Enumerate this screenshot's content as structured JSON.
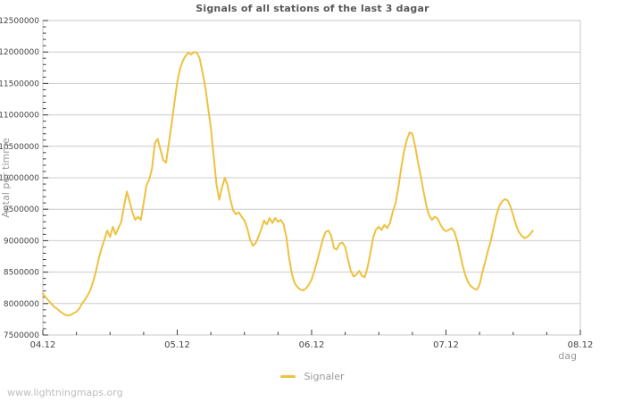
{
  "title": "Signals of all stations of the last 3 dagar",
  "watermark": "www.lightningmaps.org",
  "legend": {
    "label": "Signaler"
  },
  "colors": {
    "series": "#edc240",
    "grid": "#cccccc",
    "frame": "#c8c8c8",
    "tick": "#3a3a3a",
    "tick_label": "#444444",
    "axis_title": "#999999",
    "title": "#595959",
    "watermark": "#bdbdbd",
    "background": "#ffffff"
  },
  "chart_data": {
    "type": "line",
    "title": "Signals of all stations of the last 3 dagar",
    "xlabel": "dag",
    "ylabel": "Antal per timme",
    "grid": "horizontal-only",
    "legend_position": "bottom-center",
    "x_tick_labels": [
      "04.12",
      "05.12",
      "06.12",
      "07.12",
      "08.12"
    ],
    "x_range_hours": [
      0,
      96
    ],
    "x_major_every_hours": 24,
    "x_minor_every_hours": 6,
    "ylim": [
      7500000,
      12500000
    ],
    "y_major_step": 500000,
    "y_minor_step": 100000,
    "series": [
      {
        "name": "Signaler",
        "color": "#edc240",
        "start_hour": 0,
        "step_hours": 0.5,
        "values": [
          8160000,
          8100000,
          8050000,
          8000000,
          7950000,
          7920000,
          7880000,
          7850000,
          7820000,
          7810000,
          7820000,
          7850000,
          7870000,
          7920000,
          8000000,
          8060000,
          8130000,
          8220000,
          8350000,
          8520000,
          8720000,
          8880000,
          9020000,
          9160000,
          9060000,
          9220000,
          9100000,
          9200000,
          9300000,
          9550000,
          9780000,
          9620000,
          9450000,
          9330000,
          9380000,
          9330000,
          9600000,
          9880000,
          9970000,
          10150000,
          10550000,
          10620000,
          10450000,
          10280000,
          10240000,
          10550000,
          10850000,
          11200000,
          11520000,
          11730000,
          11860000,
          11940000,
          11990000,
          11960000,
          12000000,
          11990000,
          11900000,
          11680000,
          11450000,
          11120000,
          10800000,
          10350000,
          9900000,
          9650000,
          9850000,
          10000000,
          9880000,
          9650000,
          9480000,
          9420000,
          9450000,
          9380000,
          9320000,
          9200000,
          9020000,
          8920000,
          8960000,
          9060000,
          9180000,
          9320000,
          9260000,
          9360000,
          9280000,
          9360000,
          9300000,
          9330000,
          9260000,
          9050000,
          8720000,
          8460000,
          8320000,
          8260000,
          8220000,
          8210000,
          8240000,
          8300000,
          8380000,
          8520000,
          8680000,
          8850000,
          9020000,
          9140000,
          9160000,
          9080000,
          8880000,
          8860000,
          8950000,
          8970000,
          8900000,
          8700000,
          8520000,
          8430000,
          8460000,
          8520000,
          8440000,
          8420000,
          8580000,
          8800000,
          9050000,
          9180000,
          9220000,
          9170000,
          9250000,
          9200000,
          9280000,
          9460000,
          9600000,
          9850000,
          10150000,
          10420000,
          10600000,
          10720000,
          10700000,
          10500000,
          10250000,
          10020000,
          9780000,
          9550000,
          9400000,
          9330000,
          9380000,
          9350000,
          9260000,
          9180000,
          9150000,
          9170000,
          9200000,
          9140000,
          9000000,
          8800000,
          8600000,
          8440000,
          8330000,
          8270000,
          8240000,
          8220000,
          8300000,
          8500000,
          8660000,
          8840000,
          9000000,
          9200000,
          9400000,
          9550000,
          9620000,
          9660000,
          9640000,
          9550000,
          9400000,
          9250000,
          9140000,
          9080000,
          9040000,
          9060000,
          9100000,
          9160000
        ]
      }
    ]
  }
}
